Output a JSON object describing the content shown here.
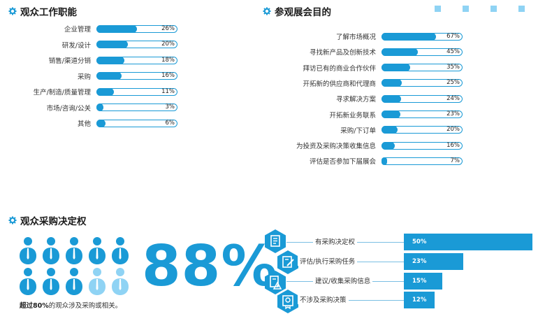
{
  "job_function": {
    "title": "观众工作职能",
    "items": [
      {
        "label": "企业管理",
        "value": 26,
        "display": "26%"
      },
      {
        "label": "研发/设计",
        "value": 20,
        "display": "20%"
      },
      {
        "label": "销售/渠道分销",
        "value": 18,
        "display": "18%"
      },
      {
        "label": "采购",
        "value": 16,
        "display": "16%"
      },
      {
        "label": "生产/制造/质量管理",
        "value": 11,
        "display": "11%"
      },
      {
        "label": "市场/咨询/公关",
        "value": 3,
        "display": "3%"
      },
      {
        "label": "其他",
        "value": 6,
        "display": "6%"
      }
    ]
  },
  "visit_purpose": {
    "title": "参观展会目的",
    "items": [
      {
        "label": "了解市场概况",
        "value": 67,
        "display": "67%"
      },
      {
        "label": "寻找新产品及创新技术",
        "value": 45,
        "display": "45%"
      },
      {
        "label": "拜访已有的商业合作伙伴",
        "value": 35,
        "display": "35%"
      },
      {
        "label": "开拓新的供应商和代理商",
        "value": 25,
        "display": "25%"
      },
      {
        "label": "寻求解决方案",
        "value": 24,
        "display": "24%"
      },
      {
        "label": "开拓新业务联系",
        "value": 23,
        "display": "23%"
      },
      {
        "label": "采购/下订单",
        "value": 20,
        "display": "20%"
      },
      {
        "label": "为投资及采购决策收集信息",
        "value": 16,
        "display": "16%"
      },
      {
        "label": "评估是否参加下届展会",
        "value": 7,
        "display": "7%"
      }
    ]
  },
  "purchasing": {
    "title": "观众采购决定权",
    "big_percent": "88%",
    "caption_bold": "超过80%",
    "caption_rest": "的观众涉及采购或相关。",
    "people_total": 10,
    "people_highlighted": 8,
    "items": [
      {
        "label": "有采购决定权",
        "value": 50,
        "display": "50%",
        "icon": "document-list-icon"
      },
      {
        "label": "评估/执行采购任务",
        "value": 23,
        "display": "23%",
        "icon": "document-edit-icon"
      },
      {
        "label": "建议/收集采购信息",
        "value": 15,
        "display": "15%",
        "icon": "document-warning-icon"
      },
      {
        "label": "不涉及采购决策",
        "value": 12,
        "display": "12%",
        "icon": "certificate-icon"
      }
    ]
  },
  "colors": {
    "accent": "#1a9ad6",
    "light": "#8fd3f4",
    "text": "#333333"
  },
  "chart_data": [
    {
      "type": "bar",
      "title": "观众工作职能",
      "categories": [
        "企业管理",
        "研发/设计",
        "销售/渠道分销",
        "采购",
        "生产/制造/质量管理",
        "市场/咨询/公关",
        "其他"
      ],
      "values": [
        26,
        20,
        18,
        16,
        11,
        3,
        6
      ],
      "unit": "%"
    },
    {
      "type": "bar",
      "title": "参观展会目的",
      "categories": [
        "了解市场概况",
        "寻找新产品及创新技术",
        "拜访已有的商业合作伙伴",
        "开拓新的供应商和代理商",
        "寻求解决方案",
        "开拓新业务联系",
        "采购/下订单",
        "为投资及采购决策收集信息",
        "评估是否参加下届展会"
      ],
      "values": [
        67,
        45,
        35,
        25,
        24,
        23,
        20,
        16,
        7
      ],
      "unit": "%"
    },
    {
      "type": "bar",
      "title": "观众采购决定权",
      "categories": [
        "有采购决定权",
        "评估/执行采购任务",
        "建议/收集采购信息",
        "不涉及采购决策"
      ],
      "values": [
        50,
        23,
        15,
        12
      ],
      "unit": "%"
    }
  ]
}
